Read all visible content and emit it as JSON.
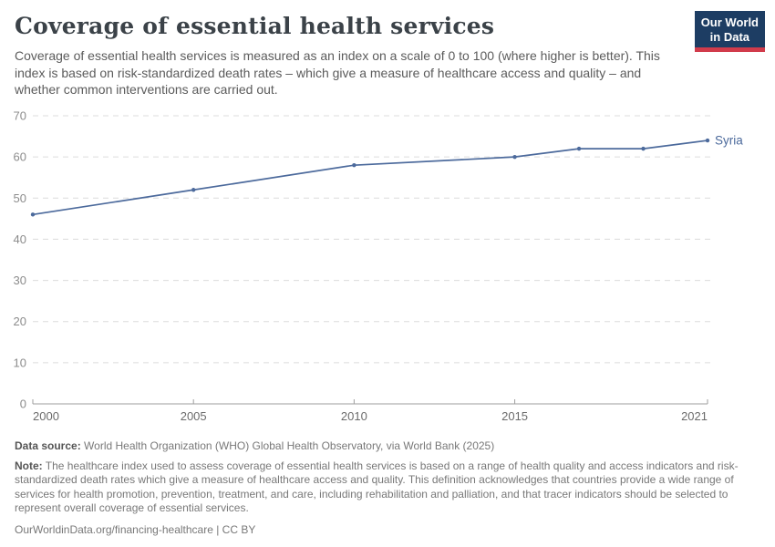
{
  "header": {
    "title": "Coverage of essential health services",
    "subtitle": "Coverage of essential health services is measured as an index on a scale of 0 to 100 (where higher is better). This index is based on risk-standardized death rates – which give a measure of healthcare access and quality – and whether common interventions are carried out.",
    "logo": {
      "line1": "Our World",
      "line2": "in Data",
      "bg_color": "#1d3d63",
      "accent_color": "#d13b4b"
    }
  },
  "chart_data": {
    "type": "line",
    "title": "Coverage of essential health services",
    "x": [
      2000,
      2005,
      2010,
      2015,
      2017,
      2019,
      2021
    ],
    "series": [
      {
        "name": "Syria",
        "color": "#4c6a9c",
        "values": [
          46,
          52,
          58,
          60,
          62,
          62,
          64
        ]
      }
    ],
    "xlabel": "",
    "ylabel": "",
    "ylim": [
      0,
      70
    ],
    "xlim": [
      2000,
      2021
    ],
    "yticks": [
      0,
      10,
      20,
      30,
      40,
      50,
      60,
      70
    ],
    "xticks": [
      2000,
      2005,
      2010,
      2015,
      2021
    ],
    "grid": "horizontal-dashed",
    "legend_position": "line-end-label"
  },
  "footer": {
    "data_source_label": "Data source:",
    "data_source_text": "World Health Organization (WHO) Global Health Observatory, via World Bank (2025)",
    "note_label": "Note:",
    "note_text": "The healthcare index used to assess coverage of essential health services is based on a range of health quality and access indicators and risk-standardized death rates which give a measure of healthcare access and quality. This definition acknowledges that countries provide a wide range of services for health promotion, prevention, treatment, and care, including rehabilitation and palliation, and that tracer indicators should be selected to represent overall coverage of essential services.",
    "license": "OurWorldinData.org/financing-healthcare | CC BY"
  }
}
